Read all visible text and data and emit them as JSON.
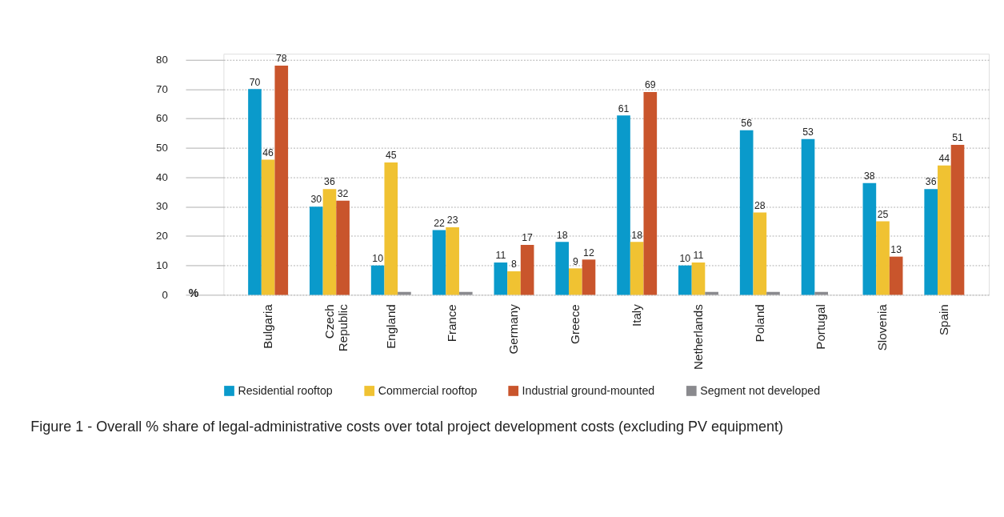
{
  "chart_data": {
    "type": "bar",
    "title": "Figure 1 - Overall % share of legal-administrative costs over total project development costs (excluding PV equipment)",
    "ylabel": "%",
    "categories": [
      "Bulgaria",
      "Czech Republic",
      "England",
      "France",
      "Germany",
      "Greece",
      "Italy",
      "Netherlands",
      "Poland",
      "Portugal",
      "Slovenia",
      "Spain"
    ],
    "series": [
      {
        "name": "Residential rooftop",
        "color": "#0a9acb",
        "values": [
          70,
          30,
          10,
          22,
          11,
          18,
          61,
          10,
          56,
          53,
          38,
          36
        ]
      },
      {
        "name": "Commercial rooftop",
        "color": "#f0c232",
        "values": [
          46,
          36,
          45,
          23,
          8,
          9,
          18,
          11,
          28,
          null,
          25,
          44
        ]
      },
      {
        "name": "Industrial ground-mounted",
        "color": "#c9552c",
        "values": [
          78,
          32,
          null,
          null,
          17,
          12,
          69,
          null,
          null,
          null,
          13,
          51
        ]
      },
      {
        "name": "Segment not developed",
        "color": "#8a8a8e",
        "values": [
          null,
          null,
          1,
          1,
          null,
          null,
          null,
          1,
          1,
          1,
          null,
          null
        ],
        "value_labels": [
          null,
          null,
          null,
          null,
          null,
          null,
          null,
          null,
          null,
          null,
          null,
          null
        ]
      }
    ],
    "ylim": [
      0,
      82
    ],
    "yticks": [
      0,
      10,
      20,
      30,
      40,
      50,
      60,
      70,
      80
    ],
    "grid": "y",
    "legend": "bottom",
    "data_labels": true
  }
}
